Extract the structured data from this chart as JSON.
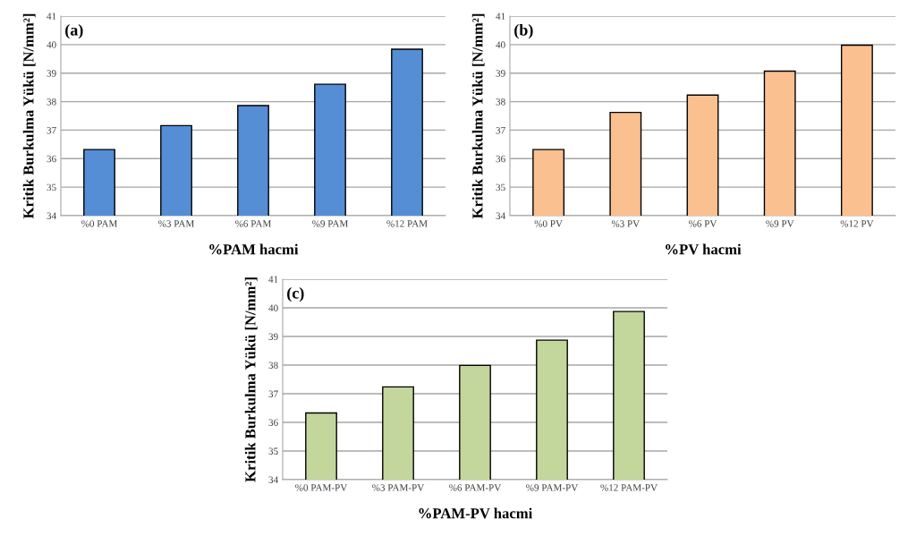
{
  "chart_data": [
    {
      "type": "bar",
      "xlabel": "%PAM hacmi",
      "ylabel": "Kritik Burkulma Yükü [N/mm²]",
      "annotations": [
        "(a)"
      ],
      "categories": [
        "%0 PAM",
        "%3 PAM",
        "%6 PAM",
        "%9 PAM",
        "%12 PAM"
      ],
      "values": [
        36.32,
        37.16,
        37.86,
        38.61,
        39.84
      ],
      "color": "#558ed5",
      "ylim": [
        34,
        41
      ],
      "yticks": [
        34,
        35,
        36,
        37,
        38,
        39,
        40,
        41
      ],
      "grid": "y"
    },
    {
      "type": "bar",
      "xlabel": "%PV hacmi",
      "ylabel": "Kritik Burkulma Yükü [N/mm²]",
      "annotations": [
        "(b)"
      ],
      "categories": [
        "%0 PV",
        "%3 PV",
        "%6 PV",
        "%9 PV",
        "%12 PV"
      ],
      "values": [
        36.32,
        37.62,
        38.23,
        39.07,
        39.98
      ],
      "color": "#fac090",
      "ylim": [
        34,
        41
      ],
      "yticks": [
        34,
        35,
        36,
        37,
        38,
        39,
        40,
        41
      ],
      "grid": "y"
    },
    {
      "type": "bar",
      "xlabel": "%PAM-PV hacmi",
      "ylabel": "Kritik Burkulma Yükü [N/mm²]",
      "annotations": [
        "(c)"
      ],
      "categories": [
        "%0 PAM-PV",
        "%3 PAM-PV",
        "%6 PAM-PV",
        "%9 PAM-PV",
        "%12 PAM-PV"
      ],
      "values": [
        36.33,
        37.24,
        37.99,
        38.87,
        39.87
      ],
      "color": "#c3d69b",
      "ylim": [
        34,
        41
      ],
      "yticks": [
        34,
        35,
        36,
        37,
        38,
        39,
        40,
        41
      ],
      "grid": "y"
    }
  ]
}
